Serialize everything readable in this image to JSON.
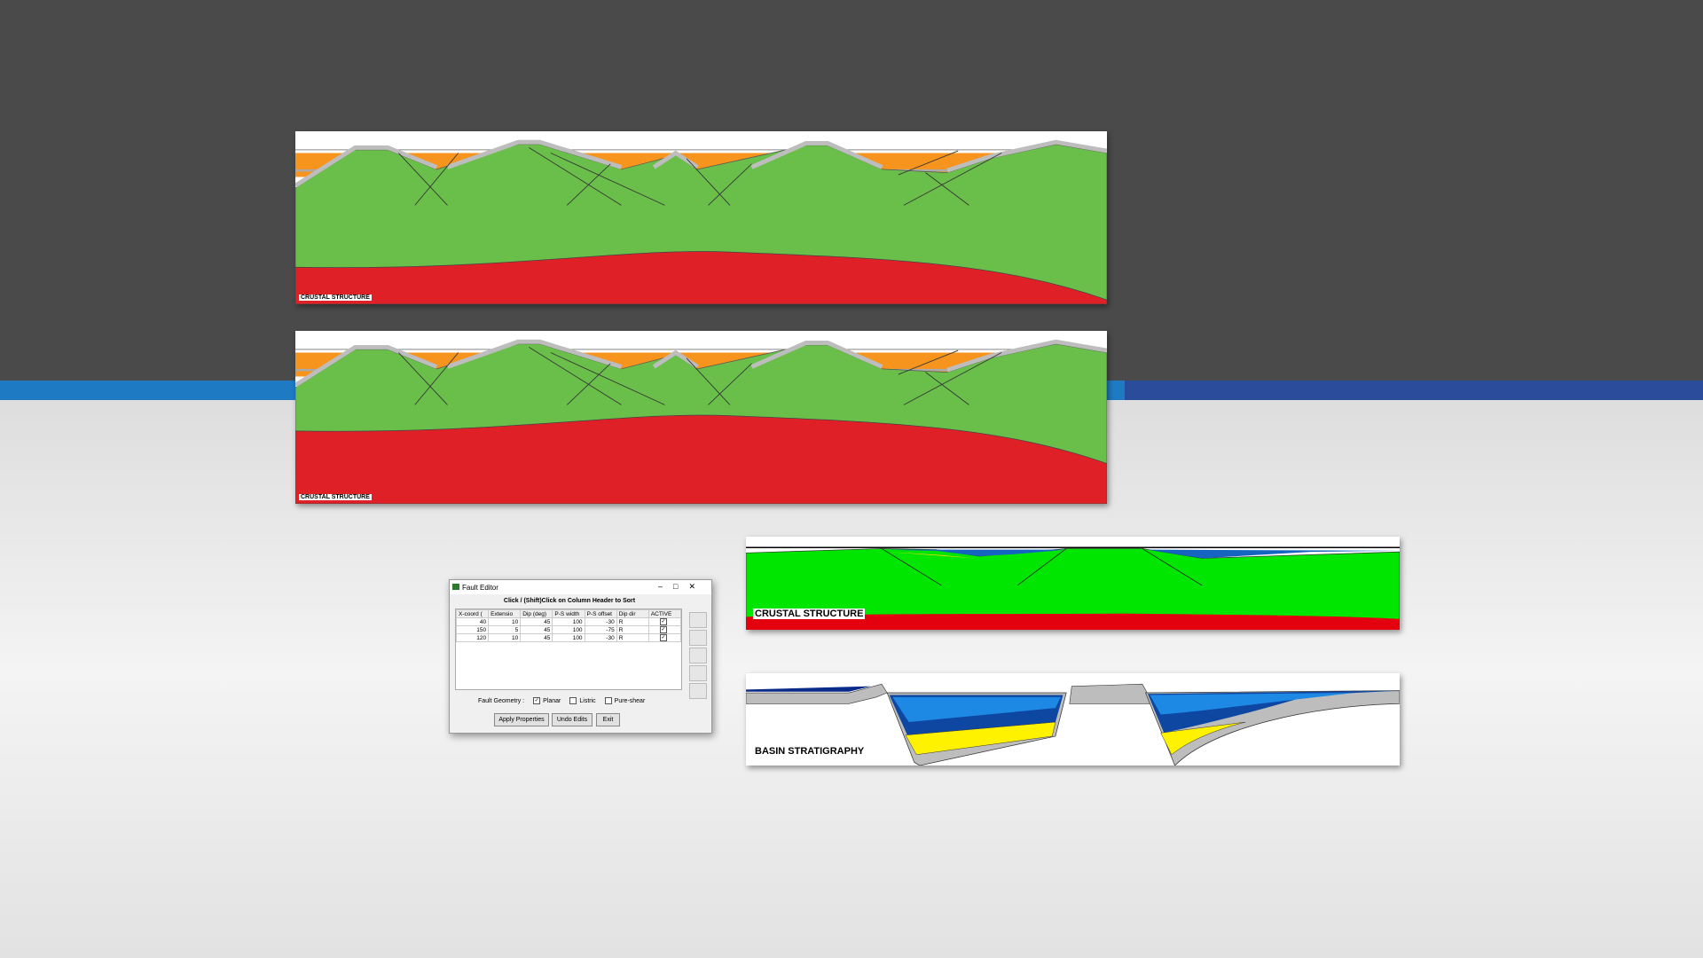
{
  "panels": [
    {
      "label": "CRUSTAL STRUCTURE"
    },
    {
      "label": "CRUSTAL STRUCTURE"
    },
    {
      "label": "CRUSTAL STRUCTURE"
    },
    {
      "label": "BASIN STRATIGRAPHY"
    }
  ],
  "fault_editor": {
    "title": "Fault Editor",
    "hint": "Click / (Shift)Click on Column Header to Sort",
    "table": {
      "headers": [
        "X-coord (",
        "Extensio",
        "Dip (deg)",
        "P-S width",
        "P-S offset",
        "Dip dir",
        "ACTIVE"
      ],
      "rows": [
        [
          40,
          10,
          45,
          100,
          -30,
          "R",
          true
        ],
        [
          150,
          5,
          45,
          100,
          -75,
          "R",
          true
        ],
        [
          120,
          10,
          45,
          100,
          -30,
          "R",
          true
        ]
      ]
    },
    "geometry_label": "Fault Geometry :",
    "options": [
      {
        "label": "Planar",
        "checked": true
      },
      {
        "label": "Listric",
        "checked": false
      },
      {
        "label": "Pure-shear",
        "checked": false
      }
    ],
    "buttons": [
      "Apply Properties",
      "Undo Edits",
      "Exit"
    ]
  }
}
